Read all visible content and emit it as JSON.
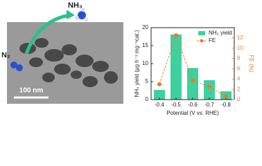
{
  "image_labels": {
    "reactant": "N₂",
    "product": "NH₃",
    "scale_bar": "100 nm"
  },
  "chart_data": {
    "type": "bar_line",
    "x_label": "Potential (V vs. RHE)",
    "y_label": "NH₃ yield (μg h⁻¹ mg⁻¹cat.)",
    "y2_label": "FE (%)",
    "categories": [
      "-0.4",
      "-0.5",
      "-0.6",
      "-0.7",
      "-0.8"
    ],
    "series": [
      {
        "name": "NH₃ yield",
        "type": "bar",
        "color": "#3fd0a0",
        "values": [
          2.7,
          18.1,
          8.8,
          5.4,
          2.3
        ]
      },
      {
        "name": "FE",
        "type": "line",
        "axis": "y2",
        "color": "#f07a20",
        "values": [
          3.0,
          12.5,
          3.7,
          2.5,
          0.6
        ]
      }
    ],
    "ylim": [
      0,
      20
    ],
    "yticks": [
      0,
      5,
      10,
      15,
      20
    ],
    "y2lim": [
      0,
      14
    ],
    "y2ticks": [
      0,
      2,
      4,
      6,
      8,
      10,
      12
    ],
    "legend": "upper right"
  }
}
